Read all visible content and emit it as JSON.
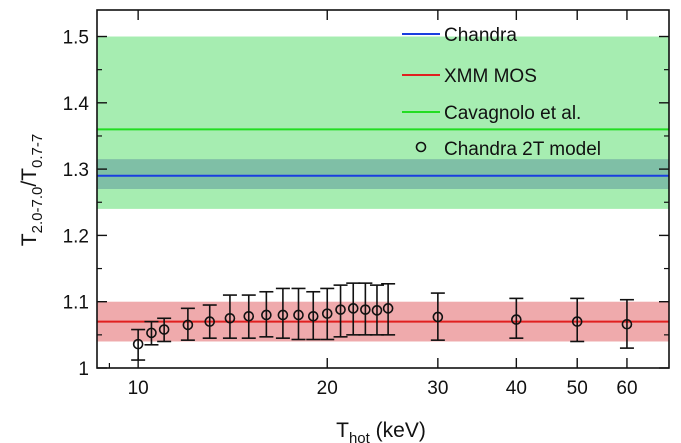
{
  "chart_data": {
    "type": "scatter",
    "title": "",
    "xlabel": {
      "main": "T",
      "sub": "hot",
      "suffix": " (keV)"
    },
    "ylabel": {
      "main1": "T",
      "sub1": "2.0-7.0",
      "mid": "/T",
      "sub2": "0.7-7"
    },
    "x_scale": "log",
    "xlim": [
      8.6,
      70
    ],
    "ylim": [
      1.0,
      1.54
    ],
    "x_ticks": [
      10,
      20,
      30,
      40,
      50,
      60
    ],
    "x_tick_labels": [
      "10",
      "20",
      "30",
      "40",
      "50",
      "60"
    ],
    "y_ticks": [
      1.0,
      1.1,
      1.2,
      1.3,
      1.4,
      1.5
    ],
    "y_tick_labels": [
      "1",
      "1.1",
      "1.2",
      "1.3",
      "1.4",
      "1.5"
    ],
    "grid": false,
    "legend_position": "top-right",
    "bands": [
      {
        "y_low": 1.24,
        "y_high": 1.5,
        "color": "#a6edb1"
      },
      {
        "y_low": 1.27,
        "y_high": 1.315,
        "color": "#7fbfa6"
      },
      {
        "y_low": 1.04,
        "y_high": 1.1,
        "color": "#efaaac"
      }
    ],
    "lines": [
      {
        "name": "Chandra",
        "y": 1.29,
        "color": "#1a3ee0"
      },
      {
        "name": "XMM MOS",
        "y": 1.07,
        "color": "#e02020"
      },
      {
        "name": "Cavagnolo et al.",
        "y": 1.36,
        "color": "#22dd22"
      }
    ],
    "series": [
      {
        "name": "Chandra 2T model",
        "x": [
          10,
          10.5,
          11,
          12,
          13,
          14,
          15,
          16,
          17,
          18,
          19,
          20,
          21,
          22,
          23,
          24,
          25,
          30,
          40,
          50,
          60
        ],
        "y": [
          1.036,
          1.053,
          1.058,
          1.065,
          1.07,
          1.075,
          1.078,
          1.08,
          1.08,
          1.08,
          1.078,
          1.082,
          1.088,
          1.09,
          1.088,
          1.087,
          1.09,
          1.077,
          1.073,
          1.07,
          1.066
        ],
        "err_low": [
          1.012,
          1.035,
          1.04,
          1.042,
          1.045,
          1.045,
          1.045,
          1.047,
          1.045,
          1.043,
          1.043,
          1.043,
          1.047,
          1.05,
          1.05,
          1.05,
          1.05,
          1.042,
          1.045,
          1.04,
          1.03
        ],
        "err_high": [
          1.058,
          1.07,
          1.075,
          1.09,
          1.095,
          1.11,
          1.11,
          1.115,
          1.12,
          1.12,
          1.115,
          1.12,
          1.125,
          1.128,
          1.128,
          1.125,
          1.127,
          1.113,
          1.105,
          1.105,
          1.103
        ]
      }
    ]
  }
}
